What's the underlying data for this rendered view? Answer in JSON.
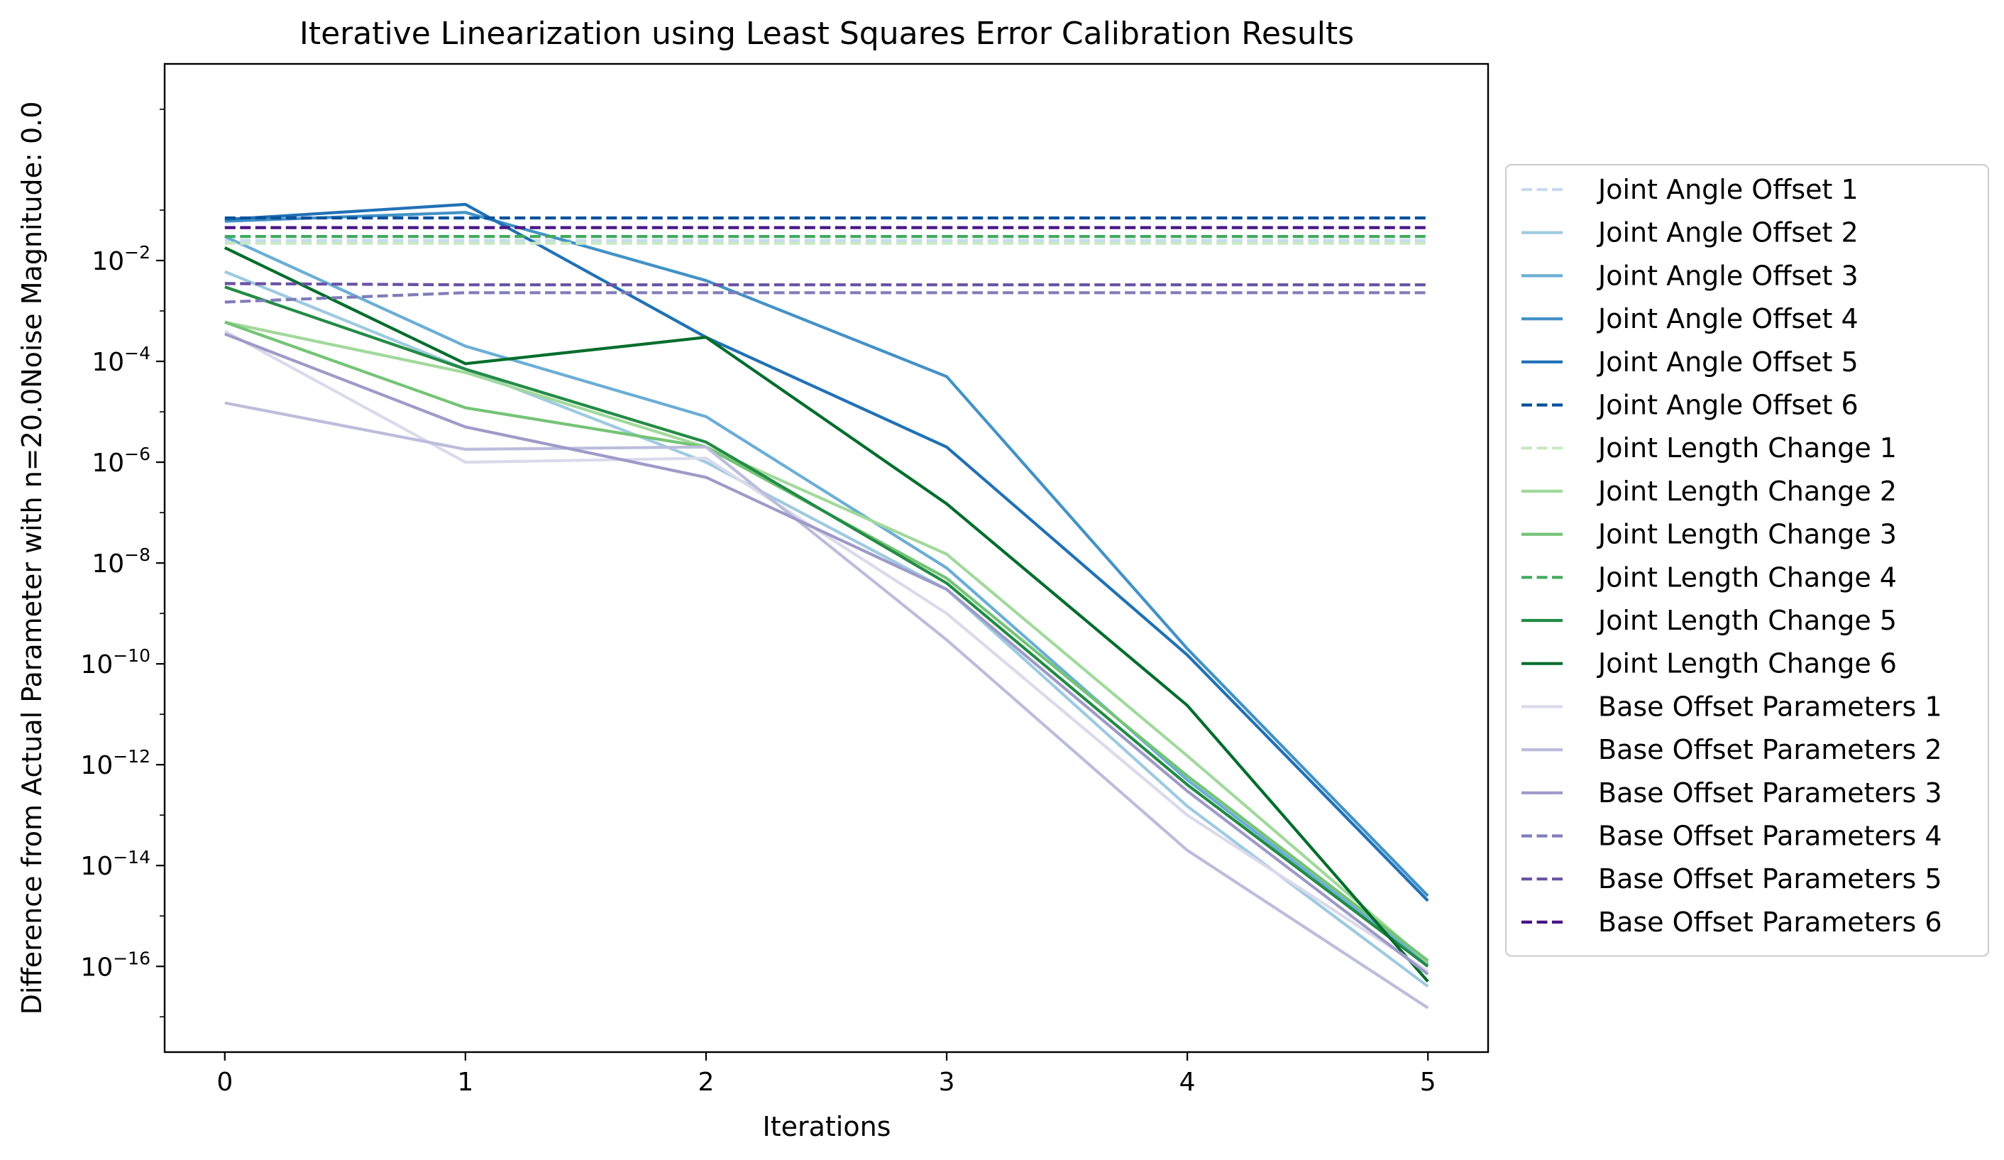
{
  "chart_data": {
    "type": "line",
    "title": "Iterative Linearization using Least Squares Error Calibration Results",
    "xlabel": "Iterations",
    "ylabel": "Difference from Actual Parameter with n=20.0Noise Magnitude: 0.0",
    "yscale": "log",
    "xlim": [
      -0.25,
      5.25
    ],
    "ylim_log10": [
      -17.7,
      1.9
    ],
    "x": [
      0,
      1,
      2,
      3,
      4,
      5
    ],
    "x_ticks": [
      {
        "value": 0,
        "label": "0"
      },
      {
        "value": 1,
        "label": "1"
      },
      {
        "value": 2,
        "label": "2"
      },
      {
        "value": 3,
        "label": "3"
      },
      {
        "value": 4,
        "label": "4"
      },
      {
        "value": 5,
        "label": "5"
      }
    ],
    "y_ticks": [
      {
        "exp": -2,
        "base": "10",
        "sup": "−2"
      },
      {
        "exp": -4,
        "base": "10",
        "sup": "−4"
      },
      {
        "exp": -6,
        "base": "10",
        "sup": "−6"
      },
      {
        "exp": -8,
        "base": "10",
        "sup": "−8"
      },
      {
        "exp": -10,
        "base": "10",
        "sup": "−10"
      },
      {
        "exp": -12,
        "base": "10",
        "sup": "−12"
      },
      {
        "exp": -14,
        "base": "10",
        "sup": "−14"
      },
      {
        "exp": -16,
        "base": "10",
        "sup": "−16"
      }
    ],
    "grid": false,
    "legend_position": "outside-right",
    "series": [
      {
        "name": "Joint Angle Offset 1",
        "color": "#c6dbef",
        "dash": true,
        "values": [
          0.025,
          0.025,
          0.025,
          0.025,
          0.025,
          0.025
        ]
      },
      {
        "name": "Joint Angle Offset 2",
        "color": "#9ecae1",
        "dash": false,
        "values": [
          0.006,
          7e-05,
          1e-06,
          3e-09,
          1.5e-13,
          4e-17
        ]
      },
      {
        "name": "Joint Angle Offset 3",
        "color": "#6baed6",
        "dash": false,
        "values": [
          0.03,
          0.0002,
          8e-06,
          8e-09,
          5e-13,
          1.1e-16
        ]
      },
      {
        "name": "Joint Angle Offset 4",
        "color": "#4292c6",
        "dash": false,
        "values": [
          0.06,
          0.09,
          0.004,
          5e-05,
          2e-10,
          2.5e-15
        ]
      },
      {
        "name": "Joint Angle Offset 5",
        "color": "#2171b5",
        "dash": false,
        "values": [
          0.065,
          0.13,
          0.0003,
          2e-06,
          1.5e-10,
          2e-15
        ]
      },
      {
        "name": "Joint Angle Offset 6",
        "color": "#08519c",
        "dash": true,
        "values": [
          0.07,
          0.07,
          0.07,
          0.07,
          0.07,
          0.07
        ]
      },
      {
        "name": "Joint Length Change 1",
        "color": "#c7e9c0",
        "dash": true,
        "values": [
          0.022,
          0.022,
          0.022,
          0.022,
          0.022,
          0.022
        ]
      },
      {
        "name": "Joint Length Change 2",
        "color": "#a1d99b",
        "dash": false,
        "values": [
          0.0006,
          6e-05,
          2e-06,
          1.5e-08,
          1.5e-12,
          1.2e-16
        ]
      },
      {
        "name": "Joint Length Change 3",
        "color": "#74c476",
        "dash": false,
        "values": [
          0.0006,
          1.2e-05,
          2e-06,
          5e-09,
          6e-13,
          1.3e-16
        ]
      },
      {
        "name": "Joint Length Change 4",
        "color": "#41ab5d",
        "dash": true,
        "values": [
          0.03,
          0.03,
          0.03,
          0.03,
          0.03,
          0.03
        ]
      },
      {
        "name": "Joint Length Change 5",
        "color": "#238b45",
        "dash": false,
        "values": [
          0.003,
          7e-05,
          2.5e-06,
          4e-09,
          4e-13,
          1e-16
        ]
      },
      {
        "name": "Joint Length Change 6",
        "color": "#006d2c",
        "dash": false,
        "values": [
          0.018,
          9e-05,
          0.0003,
          1.5e-07,
          1.5e-11,
          5e-17
        ]
      },
      {
        "name": "Base Offset Parameters 1",
        "color": "#dadaeb",
        "dash": false,
        "values": [
          0.0004,
          1e-06,
          1.2e-06,
          1e-09,
          1e-13,
          8e-17
        ]
      },
      {
        "name": "Base Offset Parameters 2",
        "color": "#bcbddc",
        "dash": false,
        "values": [
          1.5e-05,
          1.8e-06,
          2e-06,
          3e-10,
          2e-14,
          1.5e-17
        ]
      },
      {
        "name": "Base Offset Parameters 3",
        "color": "#9e9ac8",
        "dash": false,
        "values": [
          0.00035,
          5e-06,
          5e-07,
          3e-09,
          3e-13,
          7e-17
        ]
      },
      {
        "name": "Base Offset Parameters 4",
        "color": "#807dba",
        "dash": true,
        "values": [
          0.0015,
          0.0023,
          0.0023,
          0.0023,
          0.0023,
          0.0023
        ]
      },
      {
        "name": "Base Offset Parameters 5",
        "color": "#6a51a3",
        "dash": true,
        "values": [
          0.0035,
          0.0033,
          0.0033,
          0.0033,
          0.0033,
          0.0033
        ]
      },
      {
        "name": "Base Offset Parameters 6",
        "color": "#4a1486",
        "dash": true,
        "values": [
          0.045,
          0.045,
          0.045,
          0.045,
          0.045,
          0.045
        ]
      }
    ]
  }
}
